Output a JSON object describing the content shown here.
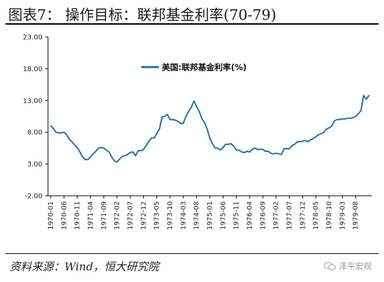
{
  "page": {
    "title": "图表7：  操作目标：联邦基金利率(70-79)",
    "source": "资料来源：Wind，恒大研究院",
    "watermark": "泽平宏观"
  },
  "colors": {
    "series": "#1f6fb2",
    "axis": "#000000",
    "text": "#222222"
  },
  "icons": {
    "watermark": "chat-bubble-icon"
  },
  "chart_data": {
    "type": "line",
    "title": "",
    "xlabel": "",
    "ylabel": "",
    "ylim": [
      -2,
      23
    ],
    "yticks": [
      "23.00",
      "18.00",
      "13.00",
      "8.00",
      "3.00",
      "-2.00"
    ],
    "ytick_values": [
      23,
      18,
      13,
      8,
      3,
      -2
    ],
    "xticks": [
      "1970-01",
      "1970-06",
      "1970-11",
      "1971-04",
      "1971-09",
      "1972-02",
      "1972-07",
      "1972-12",
      "1973-05",
      "1973-10",
      "1974-03",
      "1974-08",
      "1975-01",
      "1975-06",
      "1975-11",
      "1976-04",
      "1976-09",
      "1977-02",
      "1977-07",
      "1977-12",
      "1978-05",
      "1978-10",
      "1979-03",
      "1979-08"
    ],
    "grid": false,
    "legend": "top-center",
    "series": [
      {
        "name": "美国:联邦基金利率(%)",
        "x_start": "1970-01",
        "frequency": "monthly",
        "values": [
          9.0,
          8.6,
          8.0,
          7.9,
          7.9,
          8.0,
          7.6,
          6.9,
          6.5,
          6.0,
          5.6,
          4.9,
          4.1,
          3.7,
          3.7,
          4.1,
          4.6,
          5.0,
          5.5,
          5.6,
          5.5,
          5.2,
          4.9,
          4.1,
          3.5,
          3.3,
          3.8,
          4.2,
          4.3,
          4.5,
          4.8,
          4.9,
          4.3,
          5.1,
          5.1,
          5.3,
          5.9,
          6.6,
          7.1,
          7.1,
          7.8,
          8.5,
          10.4,
          10.5,
          10.8,
          10.0,
          10.0,
          9.9,
          9.7,
          9.4,
          9.4,
          10.5,
          11.3,
          11.9,
          12.9,
          12.0,
          11.3,
          10.1,
          9.5,
          8.5,
          7.1,
          6.2,
          5.5,
          5.5,
          5.2,
          5.6,
          6.1,
          6.1,
          6.2,
          5.8,
          5.2,
          5.2,
          4.9,
          4.8,
          5.0,
          4.9,
          5.3,
          5.5,
          5.3,
          5.3,
          5.3,
          5.0,
          5.0,
          4.7,
          4.6,
          4.7,
          4.6,
          4.5,
          5.4,
          5.4,
          5.4,
          5.9,
          6.1,
          6.5,
          6.5,
          6.6,
          6.7,
          6.5,
          6.8,
          7.0,
          7.3,
          7.6,
          7.8,
          8.0,
          8.5,
          8.7,
          9.0,
          9.8,
          10.0,
          10.0,
          10.1,
          10.1,
          10.2,
          10.2,
          10.3,
          10.5,
          10.9,
          11.4,
          13.8,
          13.2,
          13.8
        ]
      }
    ]
  }
}
